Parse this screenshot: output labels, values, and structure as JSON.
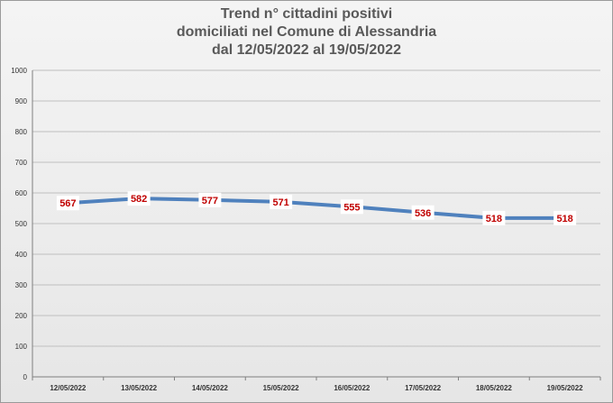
{
  "chart_data": {
    "type": "line",
    "title_lines": [
      "Trend n° cittadini positivi",
      "domiciliati nel Comune di Alessandria",
      "dal 12/05/2022 al 19/05/2022"
    ],
    "categories": [
      "12/05/2022",
      "13/05/2022",
      "14/05/2022",
      "15/05/2022",
      "16/05/2022",
      "17/05/2022",
      "18/05/2022",
      "19/05/2022"
    ],
    "series": [
      {
        "values": [
          567,
          582,
          577,
          571,
          555,
          536,
          518,
          518
        ]
      }
    ],
    "ylim": [
      0,
      1000
    ],
    "yticks": [
      0,
      100,
      200,
      300,
      400,
      500,
      600,
      700,
      800,
      900,
      1000
    ],
    "grid": true,
    "legend": "none",
    "xlabel": "",
    "ylabel": "",
    "colors": {
      "line": "#4f81bd",
      "data_label_text": "#c00000",
      "gridline": "#bfbfbf",
      "title": "#595959"
    }
  }
}
